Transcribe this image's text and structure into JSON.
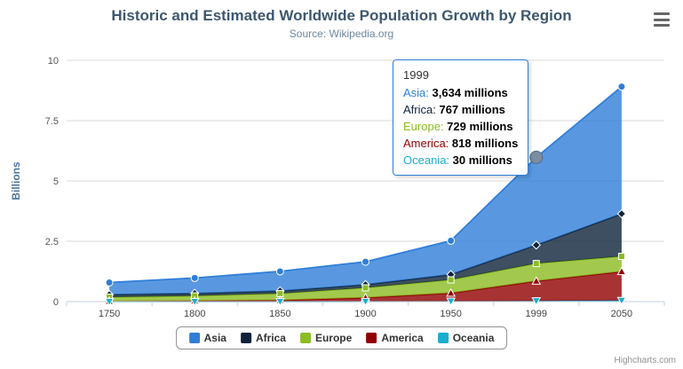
{
  "chart_data": {
    "type": "area",
    "stacking": "normal",
    "title": "Historic and Estimated Worldwide Population Growth by Region",
    "subtitle": "Source: Wikipedia.org",
    "categories": [
      "1750",
      "1800",
      "1850",
      "1900",
      "1950",
      "1999",
      "2050"
    ],
    "unit": "millions",
    "xlabel": "",
    "ylabel": "Billions",
    "ylim": [
      0,
      10
    ],
    "yticks": [
      0,
      2.5,
      5,
      7.5,
      10
    ],
    "ytick_labels": [
      "0",
      "2.5",
      "5",
      "7.5",
      "10"
    ],
    "grid": true,
    "legend_position": "bottom",
    "stack_order": "last-series-at-bottom",
    "series": [
      {
        "name": "Asia",
        "color": "#2f7ed8",
        "marker": "circle",
        "values": [
          502,
          635,
          809,
          947,
          1402,
          3634,
          5268
        ]
      },
      {
        "name": "Africa",
        "color": "#0d233a",
        "marker": "diamond",
        "values": [
          106,
          107,
          111,
          133,
          221,
          767,
          1766
        ]
      },
      {
        "name": "Europe",
        "color": "#8bbc21",
        "marker": "square",
        "values": [
          163,
          203,
          276,
          408,
          547,
          729,
          628
        ]
      },
      {
        "name": "America",
        "color": "#910000",
        "marker": "triangle",
        "values": [
          18,
          31,
          54,
          156,
          339,
          818,
          1201
        ]
      },
      {
        "name": "Oceania",
        "color": "#1aadce",
        "marker": "triangle-down",
        "values": [
          2,
          2,
          2,
          6,
          13,
          30,
          46
        ]
      }
    ],
    "hover_point": {
      "category": "1999",
      "series": "Asia",
      "marker_color": "#7b8da3"
    }
  },
  "tooltip": {
    "header": "1999",
    "border_color": "#2f7ed8",
    "lines": [
      {
        "name": "Asia",
        "color": "#2f7ed8",
        "value": "3,634 millions"
      },
      {
        "name": "Africa",
        "color": "#0d233a",
        "value": "767 millions"
      },
      {
        "name": "Europe",
        "color": "#8bbc21",
        "value": "729 millions"
      },
      {
        "name": "America",
        "color": "#910000",
        "value": "818 millions"
      },
      {
        "name": "Oceania",
        "color": "#1aadce",
        "value": "30 millions"
      }
    ]
  },
  "credits": {
    "label": "Highcharts.com"
  }
}
